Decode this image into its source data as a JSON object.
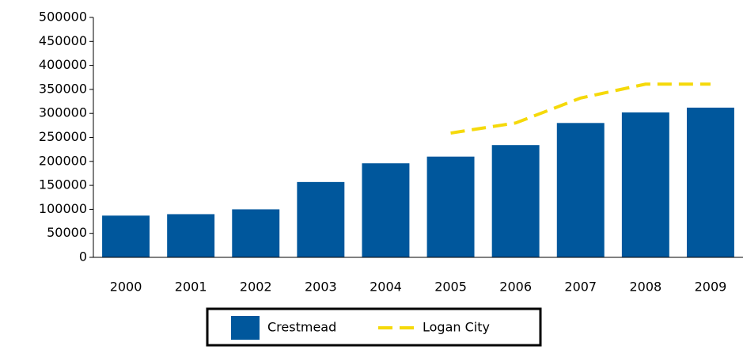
{
  "chart_data": {
    "type": "bar",
    "categories": [
      "2000",
      "2001",
      "2002",
      "2003",
      "2004",
      "2005",
      "2006",
      "2007",
      "2008",
      "2009"
    ],
    "series": [
      {
        "name": "Crestmead",
        "type": "bar",
        "color": "#00579c",
        "values": [
          87000,
          90000,
          100000,
          157000,
          196000,
          210000,
          234000,
          280000,
          302000,
          312000
        ]
      },
      {
        "name": "Logan City",
        "type": "line",
        "color": "#f5d90a",
        "values": [
          null,
          null,
          null,
          null,
          null,
          259000,
          280000,
          332000,
          361000,
          361000
        ]
      }
    ],
    "ylim": [
      0,
      500000
    ],
    "yticks": [
      0,
      50000,
      100000,
      150000,
      200000,
      250000,
      300000,
      350000,
      400000,
      450000,
      500000
    ]
  }
}
